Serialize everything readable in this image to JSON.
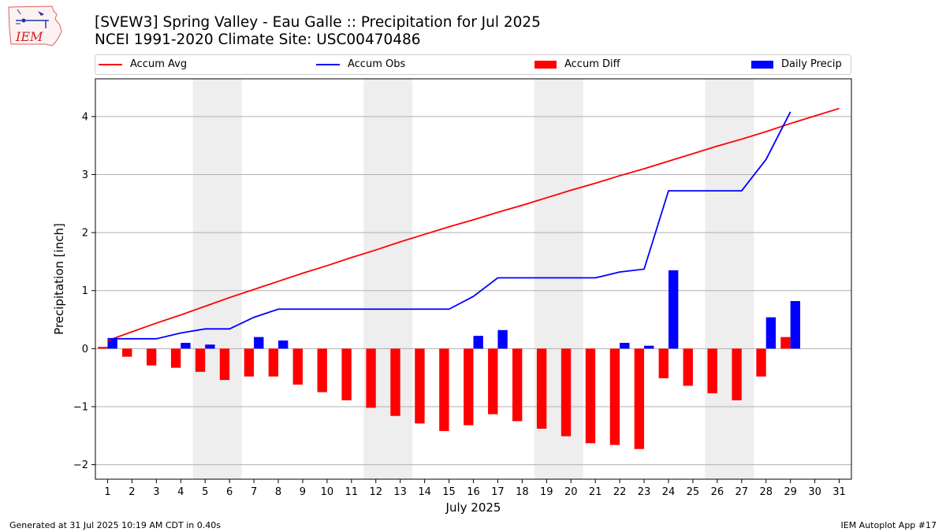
{
  "header": {
    "title_line1": "[SVEW3] Spring Valley - Eau Galle :: Precipitation for Jul 2025",
    "title_line2": "NCEI 1991-2020 Climate Site: USC00470486",
    "logo_text": "IEM"
  },
  "footer": {
    "generated": "Generated at 31 Jul 2025 10:19 AM CDT in 0.40s",
    "app": "IEM Autoplot App #17"
  },
  "legend": {
    "placement": "top, above plot",
    "items": [
      {
        "label": "Accum Avg",
        "kind": "line",
        "color": "#ff0000"
      },
      {
        "label": "Accum Obs",
        "kind": "line",
        "color": "#0000ff"
      },
      {
        "label": "Accum Diff",
        "kind": "bar",
        "color": "#ff0000"
      },
      {
        "label": "Daily Precip",
        "kind": "bar",
        "color": "#0000ff"
      }
    ]
  },
  "chart_data": {
    "type": "bar",
    "xlabel": "July 2025",
    "ylabel": "Precipitation [inch]",
    "xlim": [
      0.5,
      31.5
    ],
    "ylim": [
      -2.25,
      4.65
    ],
    "yticks": [
      -2,
      -1,
      0,
      1,
      2,
      3,
      4
    ],
    "ytick_labels": [
      "−2",
      "−1",
      "0",
      "1",
      "2",
      "3",
      "4"
    ],
    "grid": "horizontal",
    "colors": {
      "avg": "#ff0000",
      "obs": "#0000ff",
      "diff": "#ff0000",
      "daily": "#0000ff",
      "weekend": "#eeeeee"
    },
    "weekend_spans": [
      [
        4.5,
        6.5
      ],
      [
        11.5,
        13.5
      ],
      [
        18.5,
        20.5
      ],
      [
        25.5,
        27.5
      ]
    ],
    "days": [
      1,
      2,
      3,
      4,
      5,
      6,
      7,
      8,
      9,
      10,
      11,
      12,
      13,
      14,
      15,
      16,
      17,
      18,
      19,
      20,
      21,
      22,
      23,
      24,
      25,
      26,
      27,
      28,
      29,
      30,
      31
    ],
    "series": [
      {
        "name": "Accum Avg",
        "kind": "line",
        "values": [
          0.14,
          0.29,
          0.44,
          0.58,
          0.73,
          0.88,
          1.02,
          1.16,
          1.3,
          1.43,
          1.57,
          1.7,
          1.84,
          1.97,
          2.1,
          2.22,
          2.35,
          2.47,
          2.6,
          2.73,
          2.85,
          2.98,
          3.1,
          3.23,
          3.36,
          3.49,
          3.61,
          3.74,
          3.88,
          4.01,
          4.14
        ]
      },
      {
        "name": "Accum Obs",
        "kind": "line",
        "values": [
          0.17,
          0.17,
          0.17,
          0.27,
          0.34,
          0.34,
          0.54,
          0.68,
          0.68,
          0.68,
          0.68,
          0.68,
          0.68,
          0.68,
          0.68,
          0.9,
          1.22,
          1.22,
          1.22,
          1.22,
          1.22,
          1.32,
          1.37,
          2.72,
          2.72,
          2.72,
          2.72,
          3.26,
          4.08
        ]
      },
      {
        "name": "Accum Diff",
        "kind": "bar",
        "values": [
          0.03,
          -0.14,
          -0.29,
          -0.33,
          -0.4,
          -0.54,
          -0.48,
          -0.48,
          -0.62,
          -0.75,
          -0.89,
          -1.02,
          -1.16,
          -1.29,
          -1.42,
          -1.32,
          -1.13,
          -1.25,
          -1.38,
          -1.51,
          -1.63,
          -1.66,
          -1.73,
          -0.51,
          -0.64,
          -0.77,
          -0.89,
          -0.48,
          0.2
        ]
      },
      {
        "name": "Daily Precip",
        "kind": "bar",
        "values": [
          0.17,
          0,
          0,
          0.1,
          0.07,
          0,
          0.2,
          0.14,
          0,
          0,
          0,
          0,
          0,
          0,
          0,
          0.22,
          0.32,
          0,
          0,
          0,
          0,
          0.1,
          0.05,
          1.35,
          0,
          0,
          0,
          0.54,
          0.82
        ]
      }
    ]
  }
}
